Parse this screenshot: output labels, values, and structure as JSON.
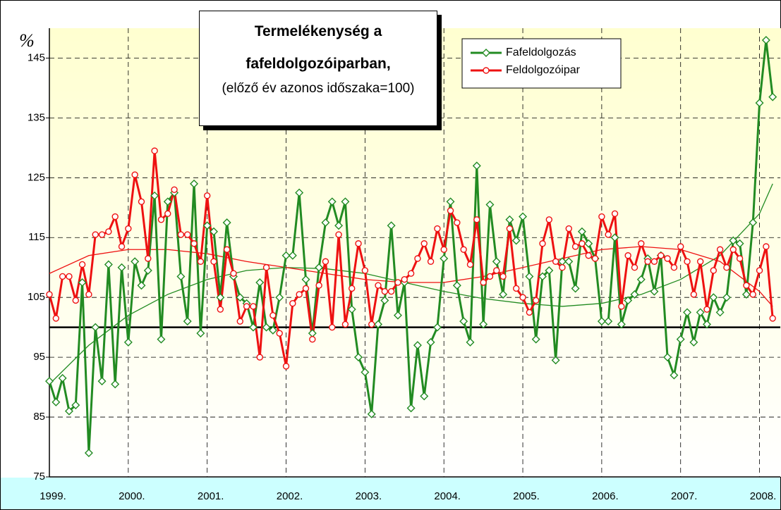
{
  "chart_data": {
    "type": "line",
    "title": "Termelékenység a fafeldolgozóiparban,",
    "subtitle": "(előző év azonos időszaka=100)",
    "y_label": "%",
    "categories": [
      "1999.",
      null,
      null,
      null,
      null,
      null,
      null,
      null,
      null,
      null,
      null,
      null,
      "2000.",
      null,
      null,
      null,
      null,
      null,
      null,
      null,
      null,
      null,
      null,
      null,
      "2001.",
      null,
      null,
      null,
      null,
      null,
      null,
      null,
      null,
      null,
      null,
      null,
      "2002.",
      null,
      null,
      null,
      null,
      null,
      null,
      null,
      null,
      null,
      null,
      null,
      "2003.",
      null,
      null,
      null,
      null,
      null,
      null,
      null,
      null,
      null,
      null,
      null,
      "2004.",
      null,
      null,
      null,
      null,
      null,
      null,
      null,
      null,
      null,
      null,
      null,
      "2005.",
      null,
      null,
      null,
      null,
      null,
      null,
      null,
      null,
      null,
      null,
      null,
      "2006.",
      null,
      null,
      null,
      null,
      null,
      null,
      null,
      null,
      null,
      null,
      null,
      "2007.",
      null,
      null,
      null,
      null,
      null,
      null,
      null,
      null,
      null,
      null,
      null,
      "2008.",
      null,
      null
    ],
    "series": [
      {
        "name": "Fafeldolgozás",
        "color": "#228b22",
        "marker": "diamond",
        "values": [
          91,
          87.5,
          91.5,
          86,
          87,
          107.5,
          79,
          100,
          91,
          110.5,
          90.5,
          110,
          97.5,
          111,
          107,
          109.5,
          122,
          98,
          121,
          122.5,
          108.5,
          101,
          124,
          99,
          117,
          116,
          105,
          117.5,
          108.5,
          105,
          104,
          100,
          107.5,
          100,
          99.5,
          105,
          112,
          112,
          122.5,
          108,
          99,
          110,
          117.5,
          121,
          117,
          121,
          103,
          95,
          92.5,
          85.5,
          100.5,
          104.5,
          117,
          102,
          107.5,
          86.5,
          97,
          88.5,
          97.5,
          100,
          111.5,
          121,
          107,
          101,
          97.5,
          127,
          100.5,
          120.5,
          111,
          105.5,
          118,
          114.5,
          118.5,
          108.5,
          98,
          108.5,
          109.5,
          94.5,
          111,
          111,
          106.5,
          116,
          114,
          111.5,
          101,
          101,
          115,
          100.5,
          104.5,
          105.5,
          108,
          111.5,
          106,
          112,
          95,
          92,
          98,
          102.5,
          97.5,
          102.5,
          100.5,
          105,
          102.5,
          105,
          114.5,
          114,
          105.5,
          117.5,
          137.5,
          148,
          138.5
        ]
      },
      {
        "name": "Feldolgozóipar",
        "color": "#ee1111",
        "marker": "circle",
        "values": [
          105.5,
          101.5,
          108.5,
          108.5,
          104.5,
          110.5,
          105.5,
          115.5,
          115.5,
          116,
          118.5,
          113.5,
          116.5,
          125.5,
          121,
          111.5,
          129.5,
          118,
          119,
          123,
          115.5,
          115.5,
          114,
          111,
          122,
          111,
          103,
          113,
          109,
          101,
          103.5,
          103.5,
          95,
          110,
          102,
          99,
          93.5,
          104,
          105.5,
          106.5,
          98,
          107,
          111,
          100,
          115.5,
          100.5,
          106.5,
          114,
          109.5,
          100.5,
          107,
          106,
          106,
          107.5,
          108,
          109,
          111.5,
          114,
          111,
          116.5,
          113,
          119.5,
          117.5,
          113,
          110.5,
          118,
          107.5,
          108.5,
          109.5,
          108.5,
          116.5,
          106.5,
          105,
          102.5,
          104.5,
          114,
          118,
          111,
          110,
          116.5,
          113.5,
          114,
          112,
          111.5,
          118.5,
          115.5,
          119,
          103.5,
          112,
          110,
          114,
          111,
          111,
          112,
          111.5,
          110,
          113.5,
          111,
          105.5,
          111,
          103,
          109.5,
          113,
          110,
          113,
          111.5,
          107,
          105.5,
          109.5,
          113.5,
          101.5
        ]
      }
    ],
    "trendlines": [
      {
        "color": "#228b22",
        "x": [
          0,
          6,
          12,
          18,
          24,
          30,
          36,
          42,
          48,
          54,
          60,
          66,
          72,
          78,
          84,
          90,
          96,
          102,
          108,
          110
        ],
        "values": [
          90.5,
          97,
          102,
          105.5,
          108,
          109.5,
          110,
          109.8,
          109,
          107.5,
          106,
          104.8,
          104,
          103.5,
          104,
          105.5,
          108,
          112,
          119,
          124
        ]
      },
      {
        "color": "#ee1111",
        "x": [
          0,
          6,
          12,
          18,
          24,
          30,
          36,
          42,
          48,
          54,
          60,
          66,
          72,
          78,
          84,
          90,
          96,
          102,
          108,
          110
        ],
        "values": [
          109,
          112,
          113,
          113,
          112.3,
          111,
          110,
          109,
          108,
          107.5,
          107.5,
          108.5,
          110,
          111.5,
          113,
          113.5,
          113,
          111,
          106,
          103.5
        ]
      }
    ],
    "reference_line": 100,
    "ylim": [
      75,
      150
    ],
    "yticks": [
      75,
      85,
      95,
      105,
      115,
      125,
      135,
      145
    ],
    "grid": true,
    "legend": "top-right"
  }
}
